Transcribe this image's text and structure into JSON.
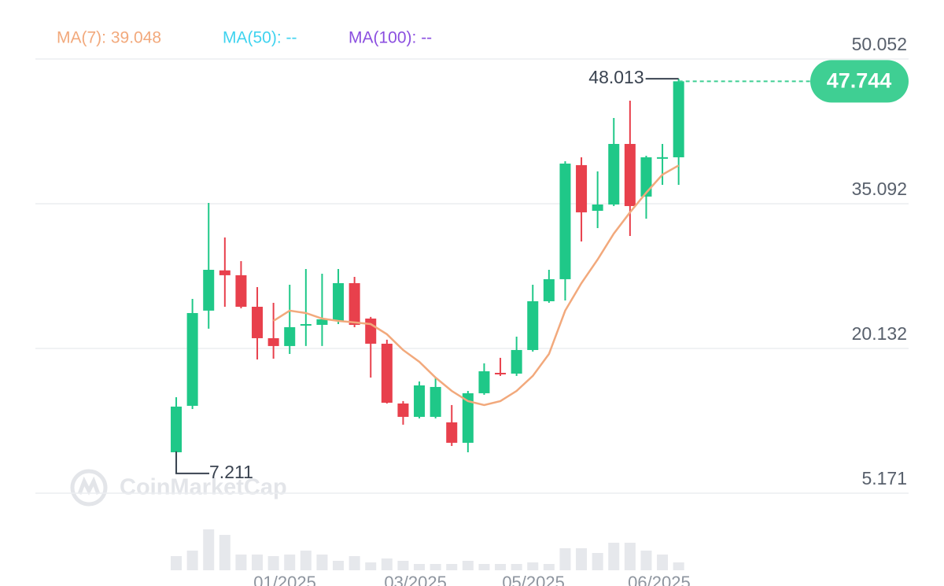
{
  "chart_data": {
    "type": "candlestick",
    "legend": [
      "MA(7): 39.048",
      "MA(50): --",
      "MA(100): --"
    ],
    "legend_colors": [
      "#f2a97c",
      "#3fd3ef",
      "#8b4fe0"
    ],
    "watermark": "CoinMarketCap",
    "open": [
      9.4,
      14.2,
      24.04,
      28.2,
      27.7,
      24.44,
      21.19,
      20.38,
      22.49,
      22.57,
      22.98,
      26.88,
      23.22,
      20.62,
      14.44,
      13.06,
      13.06,
      12.49,
      10.38,
      15.5,
      17.61,
      17.53,
      19.97,
      25.01,
      27.29,
      39.08,
      34.36,
      35.01,
      41.27,
      35.83,
      39.89,
      39.89
    ],
    "high": [
      15.09,
      25.25,
      35.17,
      31.6,
      29.16,
      26.47,
      24.85,
      26.72,
      28.34,
      27.85,
      28.34,
      27.53,
      23.39,
      21.03,
      14.69,
      16.72,
      17.12,
      14.28,
      15.74,
      18.59,
      19.16,
      21.35,
      26.72,
      28.26,
      39.48,
      39.89,
      38.43,
      43.95,
      45.74,
      40.05,
      41.27,
      48.013
    ],
    "low": [
      7.211,
      13.87,
      22.17,
      24.44,
      24.28,
      18.99,
      19.07,
      19.56,
      20.38,
      20.38,
      22.65,
      22.33,
      17.12,
      14.44,
      12.25,
      12.9,
      12.9,
      10.05,
      9.4,
      15.34,
      17.29,
      17.29,
      19.81,
      24.85,
      25.09,
      31.19,
      32.57,
      34.85,
      31.76,
      33.55,
      37.04,
      37.04
    ],
    "close": [
      14.12,
      23.79,
      28.26,
      27.7,
      24.44,
      21.19,
      20.38,
      22.33,
      22.65,
      23.14,
      26.88,
      22.57,
      20.62,
      14.52,
      13.06,
      16.31,
      16.15,
      10.38,
      15.5,
      17.77,
      17.45,
      19.97,
      25.01,
      27.29,
      39.24,
      34.2,
      35.01,
      41.27,
      34.85,
      39.89,
      39.9,
      47.744
    ],
    "ma": [
      null,
      null,
      null,
      null,
      null,
      null,
      22.98,
      24.04,
      23.79,
      23.22,
      22.98,
      22.82,
      22.65,
      21.6,
      19.97,
      18.75,
      17.12,
      15.74,
      14.69,
      14.28,
      14.69,
      15.74,
      17.29,
      19.56,
      24.04,
      26.88,
      29.32,
      32.0,
      34.2,
      36.23,
      38.1,
      39.048
    ],
    "ma_color": "#f2a97c",
    "volume": [
      18,
      25,
      52,
      45,
      20,
      20,
      18,
      20,
      25,
      20,
      12,
      18,
      10,
      15,
      12,
      8,
      8,
      8,
      12,
      8,
      8,
      8,
      10,
      8,
      28,
      28,
      22,
      35,
      35,
      25,
      20,
      10
    ],
    "volume_color": "#e6e8ec",
    "up_color": "#1fc888",
    "down_color": "#e8404c",
    "price_tag_color": "#3fcf93",
    "ylim": [
      3.3,
      53.71
    ],
    "yticks": [
      5.171,
      20.132,
      35.092,
      50.052
    ],
    "xlim": [
      -8.69,
      45.19
    ],
    "xticks": [
      {
        "value": 6.7,
        "label": "01/2025"
      },
      {
        "value": 14.76,
        "label": "03/2025"
      },
      {
        "value": 22.04,
        "label": "05/2025"
      },
      {
        "value": 29.8,
        "label": "06/2025"
      }
    ],
    "grid": true
  }
}
